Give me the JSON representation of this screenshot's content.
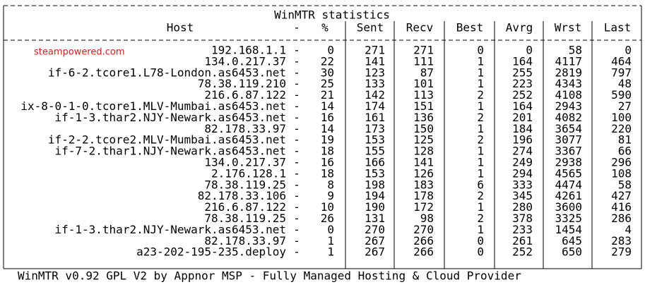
{
  "title": "WinMTR statistics",
  "watermark": "steampowered.com",
  "table": {
    "header": [
      "Host",
      "-",
      "%",
      "Sent",
      "Recv",
      "Best",
      "Avrg",
      "Wrst",
      "Last"
    ],
    "rows": [
      [
        "192.168.1.1",
        "-",
        0,
        271,
        271,
        0,
        0,
        58,
        0
      ],
      [
        "134.0.217.37",
        "-",
        22,
        141,
        111,
        1,
        164,
        4117,
        464
      ],
      [
        "if-6-2.tcore1.L78-London.as6453.net",
        "-",
        30,
        123,
        87,
        1,
        255,
        2819,
        797
      ],
      [
        "78.38.119.210",
        "-",
        25,
        133,
        101,
        1,
        223,
        4343,
        48
      ],
      [
        "216.6.87.122",
        "-",
        21,
        142,
        113,
        2,
        252,
        4108,
        590
      ],
      [
        "ix-8-0-1-0.tcore1.MLV-Mumbai.as6453.net",
        "-",
        14,
        174,
        151,
        1,
        164,
        2943,
        27
      ],
      [
        "if-1-3.thar2.NJY-Newark.as6453.net",
        "-",
        16,
        161,
        136,
        2,
        201,
        4082,
        100
      ],
      [
        "82.178.33.97",
        "-",
        14,
        173,
        150,
        1,
        184,
        3654,
        220
      ],
      [
        "if-2-2.tcore2.MLV-Mumbai.as6453.net",
        "-",
        19,
        153,
        125,
        2,
        196,
        3077,
        81
      ],
      [
        "if-7-2.thar1.NJY-Newark.as6453.net",
        "-",
        18,
        155,
        128,
        1,
        274,
        3367,
        66
      ],
      [
        "134.0.217.37",
        "-",
        16,
        166,
        141,
        1,
        249,
        2938,
        296
      ],
      [
        "2.176.128.1",
        "-",
        18,
        153,
        126,
        1,
        294,
        4565,
        108
      ],
      [
        "78.38.119.25",
        "-",
        8,
        198,
        183,
        6,
        333,
        4474,
        58
      ],
      [
        "82.178.33.106",
        "-",
        9,
        194,
        178,
        2,
        345,
        4261,
        427
      ],
      [
        "216.6.87.122",
        "-",
        10,
        190,
        172,
        1,
        280,
        3600,
        416
      ],
      [
        "78.38.119.25",
        "-",
        26,
        131,
        98,
        2,
        378,
        3325,
        286
      ],
      [
        "if-1-3.thar2.NJY-Newark.as6453.net",
        "-",
        0,
        270,
        270,
        1,
        233,
        1454,
        4
      ],
      [
        "82.178.33.97",
        "-",
        1,
        267,
        266,
        0,
        261,
        645,
        283
      ],
      [
        "a23-202-195-235.deploy",
        "-",
        1,
        267,
        266,
        0,
        252,
        650,
        279
      ]
    ]
  },
  "footer": "WinMTR v0.92 GPL V2 by Appnor MSP - Fully Managed Hosting & Cloud Provider"
}
